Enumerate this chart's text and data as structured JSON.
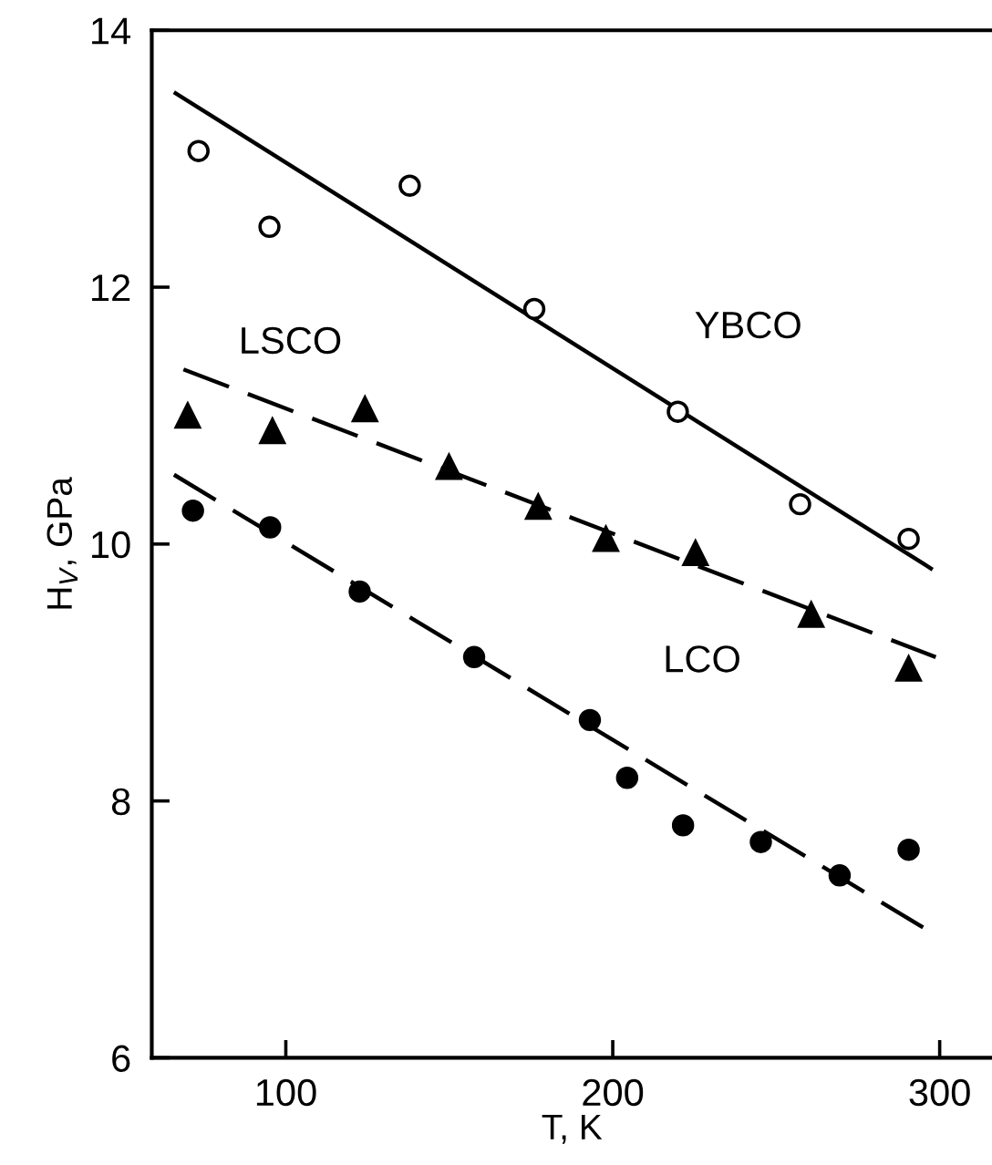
{
  "chart_data": {
    "type": "scatter",
    "xlabel": "T, K",
    "ylabel": "H$_{V}$, GPa",
    "xlim": [
      59,
      316
    ],
    "ylim": [
      6,
      14
    ],
    "xticks": [
      100,
      200,
      300
    ],
    "yticks": [
      6,
      8,
      10,
      12,
      14
    ],
    "grid": false,
    "legend": false,
    "series": [
      {
        "color": "#ffffff",
        "marker": "circle",
        "x": [
          73.3,
          95,
          137.9,
          176,
          219.9,
          257.3,
          290.5
        ],
        "values": [
          13.06,
          12.47,
          12.79,
          11.83,
          11.03,
          10.31,
          10.04
        ]
      },
      {
        "color": "#000000",
        "marker": "triangle",
        "x": [
          70,
          95.9,
          124.2,
          149.9,
          177.2,
          197.9,
          225.3,
          260.7,
          290.5
        ],
        "values": [
          11.0,
          10.88,
          11.05,
          10.6,
          10.29,
          10.04,
          9.93,
          9.45,
          9.03
        ]
      },
      {
        "color": "#000000",
        "marker": "circle",
        "x": [
          71.6,
          95.2,
          122.6,
          157.6,
          193,
          204.4,
          221.5,
          245.3,
          269.4,
          290.5
        ],
        "values": [
          10.26,
          10.13,
          9.63,
          9.12,
          8.63,
          8.18,
          7.81,
          7.68,
          7.42,
          7.62
        ]
      },
      {
        "type": "line",
        "color": "#000000",
        "line_style": "solid",
        "x": [
          66.3,
          297.3
        ],
        "values": [
          13.51,
          9.81
        ]
      },
      {
        "type": "line",
        "color": "#000000",
        "line_style": "dashed",
        "x": [
          68.7,
          298.8
        ],
        "values": [
          11.36,
          9.12
        ]
      },
      {
        "type": "line",
        "color": "#000000",
        "line_style": "dashed",
        "x": [
          65.8,
          295.9
        ],
        "values": [
          10.54,
          7.0
        ]
      }
    ],
    "annotations": [
      "YBCO",
      "LSCO",
      "LCO"
    ]
  }
}
